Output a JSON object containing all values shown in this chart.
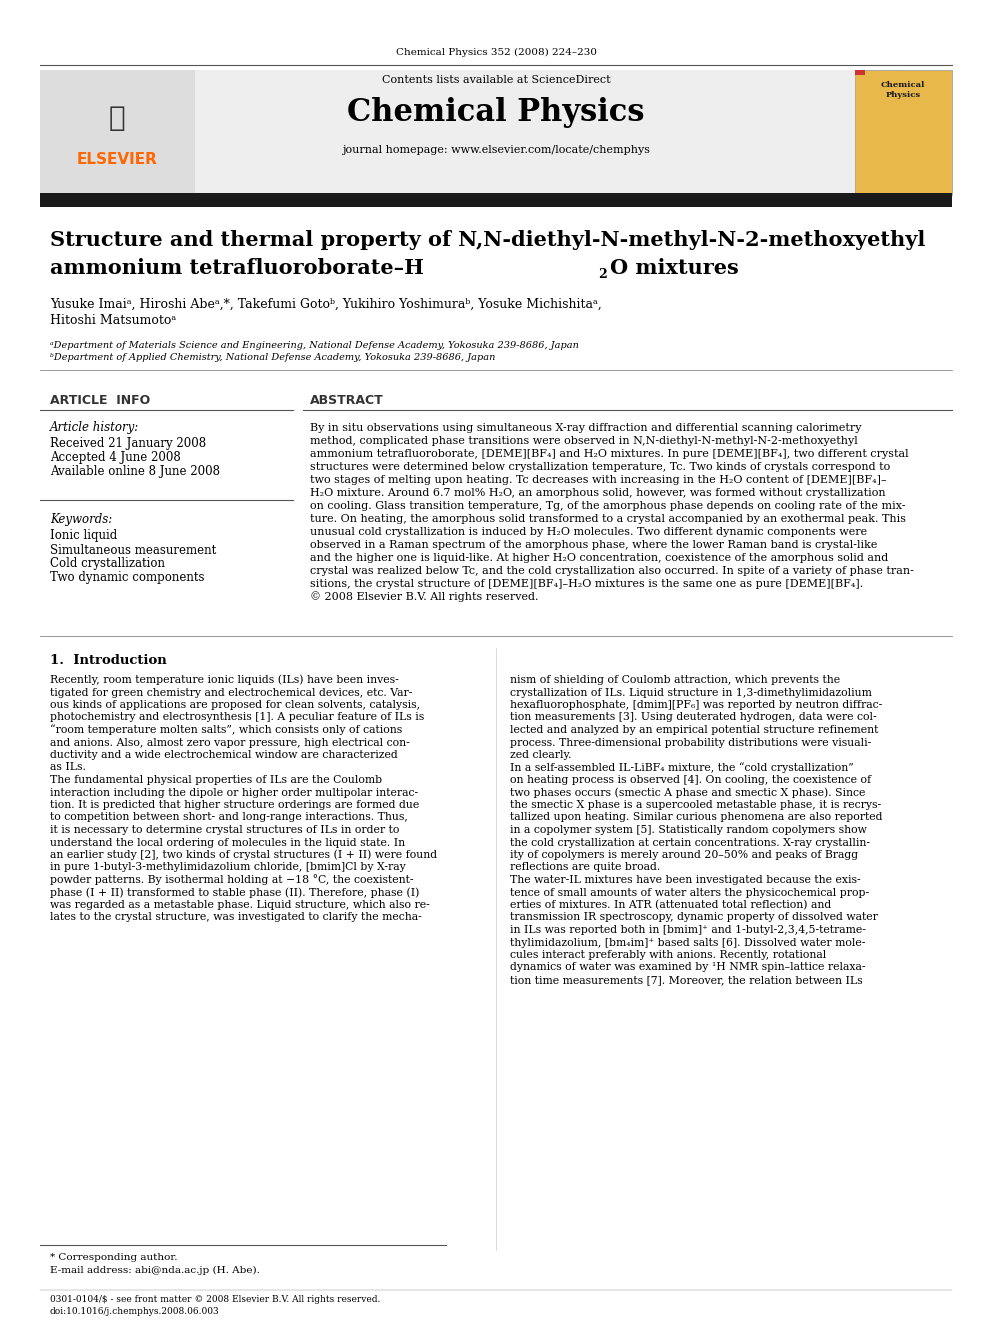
{
  "journal_ref": "Chemical Physics 352 (2008) 224–230",
  "journal_name": "Chemical Physics",
  "contents_text": "Contents lists available at ScienceDirect",
  "sciencedirect_color": "#4472C4",
  "homepage_text": "journal homepage: www.elsevier.com/locate/chemphys",
  "elsevier_color": "#FF6600",
  "title_line1": "Structure and thermal property of N,N-diethyl-N-methyl-N-2-methoxyethyl",
  "title_line2": "ammonium tetrafluoroborate–H",
  "title_line2_sub": "2",
  "title_line2_end": "O mixtures",
  "authors": "Yusuke Imaiᵃ, Hiroshi Abeᵃ,*, Takefumi Gotoᵇ, Yukihiro Yoshimuraᵇ, Yosuke Michishitaᵃ,",
  "authors2": "Hitoshi Matsumotoᵃ",
  "affil_a": "ᵃDepartment of Materials Science and Engineering, National Defense Academy, Yokosuka 239-8686, Japan",
  "affil_b": "ᵇDepartment of Applied Chemistry, National Defense Academy, Yokosuka 239-8686, Japan",
  "article_info_header": "ARTICLE  INFO",
  "abstract_header": "ABSTRACT",
  "article_history_label": "Article history:",
  "received": "Received 21 January 2008",
  "accepted": "Accepted 4 June 2008",
  "available": "Available online 8 June 2008",
  "keywords_label": "Keywords:",
  "keyword1": "Ionic liquid",
  "keyword2": "Simultaneous measurement",
  "keyword3": "Cold crystallization",
  "keyword4": "Two dynamic components",
  "abstract_text": "By in situ observations using simultaneous X-ray diffraction and differential scanning calorimetry\nmethod, complicated phase transitions were observed in N,N-diethyl-N-methyl-N-2-methoxyethyl\nammonium tetrafluoroborate, [DEME][BF₄] and H₂O mixtures. In pure [DEME][BF₄], two different crystal\nstructures were determined below crystallization temperature, Tc. Two kinds of crystals correspond to\ntwo stages of melting upon heating. Tc decreases with increasing in the H₂O content of [DEME][BF₄]–\nH₂O mixture. Around 6.7 mol% H₂O, an amorphous solid, however, was formed without crystallization\non cooling. Glass transition temperature, Tg, of the amorphous phase depends on cooling rate of the mix-\nture. On heating, the amorphous solid transformed to a crystal accompanied by an exothermal peak. This\nunusual cold crystallization is induced by H₂O molecules. Two different dynamic components were\nobserved in a Raman spectrum of the amorphous phase, where the lower Raman band is crystal-like\nand the higher one is liquid-like. At higher H₂O concentration, coexistence of the amorphous solid and\ncrystal was realized below Tc, and the cold crystallization also occurred. In spite of a variety of phase tran-\nsitions, the crystal structure of [DEME][BF₄]–H₂O mixtures is the same one as pure [DEME][BF₄].\n© 2008 Elsevier B.V. All rights reserved.",
  "intro_header": "1.  Introduction",
  "intro_col1": "Recently, room temperature ionic liquids (ILs) have been inves-\ntigated for green chemistry and electrochemical devices, etc. Var-\nous kinds of applications are proposed for clean solvents, catalysis,\nphotochemistry and electrosynthesis [1]. A peculiar feature of ILs is\n“room temperature molten salts”, which consists only of cations\nand anions. Also, almost zero vapor pressure, high electrical con-\nductivity and a wide electrochemical window are characterized\nas ILs.\n    The fundamental physical properties of ILs are the Coulomb\ninteraction including the dipole or higher order multipolar interac-\ntion. It is predicted that higher structure orderings are formed due\nto competition between short- and long-range interactions. Thus,\nit is necessary to determine crystal structures of ILs in order to\nunderstand the local ordering of molecules in the liquid state. In\nan earlier study [2], two kinds of crystal structures (I + II) were found\nin pure 1-butyl-3-methylimidazolium chloride, [bmim]Cl by X-ray\npowder patterns. By isothermal holding at −18 °C, the coexistent-\nphase (I + II) transformed to stable phase (II). Therefore, phase (I)\nwas regarded as a metastable phase. Liquid structure, which also re-\nlates to the crystal structure, was investigated to clarify the mecha-",
  "intro_col2": "nism of shielding of Coulomb attraction, which prevents the\ncrystallization of ILs. Liquid structure in 1,3-dimethylimidazolium\nhexafluorophosphate, [dmim][PF₆] was reported by neutron diffrac-\ntion measurements [3]. Using deuterated hydrogen, data were col-\nlected and analyzed by an empirical potential structure refinement\nprocess. Three-dimensional probability distributions were visuali-\nzed clearly.\n    In a self-assembled IL-LiBF₄ mixture, the “cold crystallization”\non heating process is observed [4]. On cooling, the coexistence of\ntwo phases occurs (smectic A phase and smectic X phase). Since\nthe smectic X phase is a supercooled metastable phase, it is recrys-\ntallized upon heating. Similar curious phenomena are also reported\nin a copolymer system [5]. Statistically random copolymers show\nthe cold crystallization at certain concentrations. X-ray crystallin-\nity of copolymers is merely around 20–50% and peaks of Bragg\nreflections are quite broad.\n    The water-IL mixtures have been investigated because the exis-\ntence of small amounts of water alters the physicochemical prop-\nerties of mixtures. In ATR (attenuated total reflection) and\ntransmission IR spectroscopy, dynamic property of dissolved water\nin ILs was reported both in [bmim]⁺ and 1-butyl-2,3,4,5-tetrame-\nthylimidazolium, [bm₄im]⁺ based salts [6]. Dissolved water mole-\ncules interact preferably with anions. Recently, rotational\ndynamics of water was examined by ¹H NMR spin–lattice relaxa-\ntion time measurements [7]. Moreover, the relation between ILs",
  "footnote_star": "* Corresponding author.",
  "footnote_email": "E-mail address: abi@nda.ac.jp (H. Abe).",
  "footer_text1": "0301-0104/$ - see front matter © 2008 Elsevier B.V. All rights reserved.",
  "footer_text2": "doi:10.1016/j.chemphys.2008.06.003",
  "bg_color": "#FFFFFF",
  "header_bg": "#F0F0F0",
  "thick_bar_color": "#1A1A1A",
  "thin_line_color": "#999999"
}
